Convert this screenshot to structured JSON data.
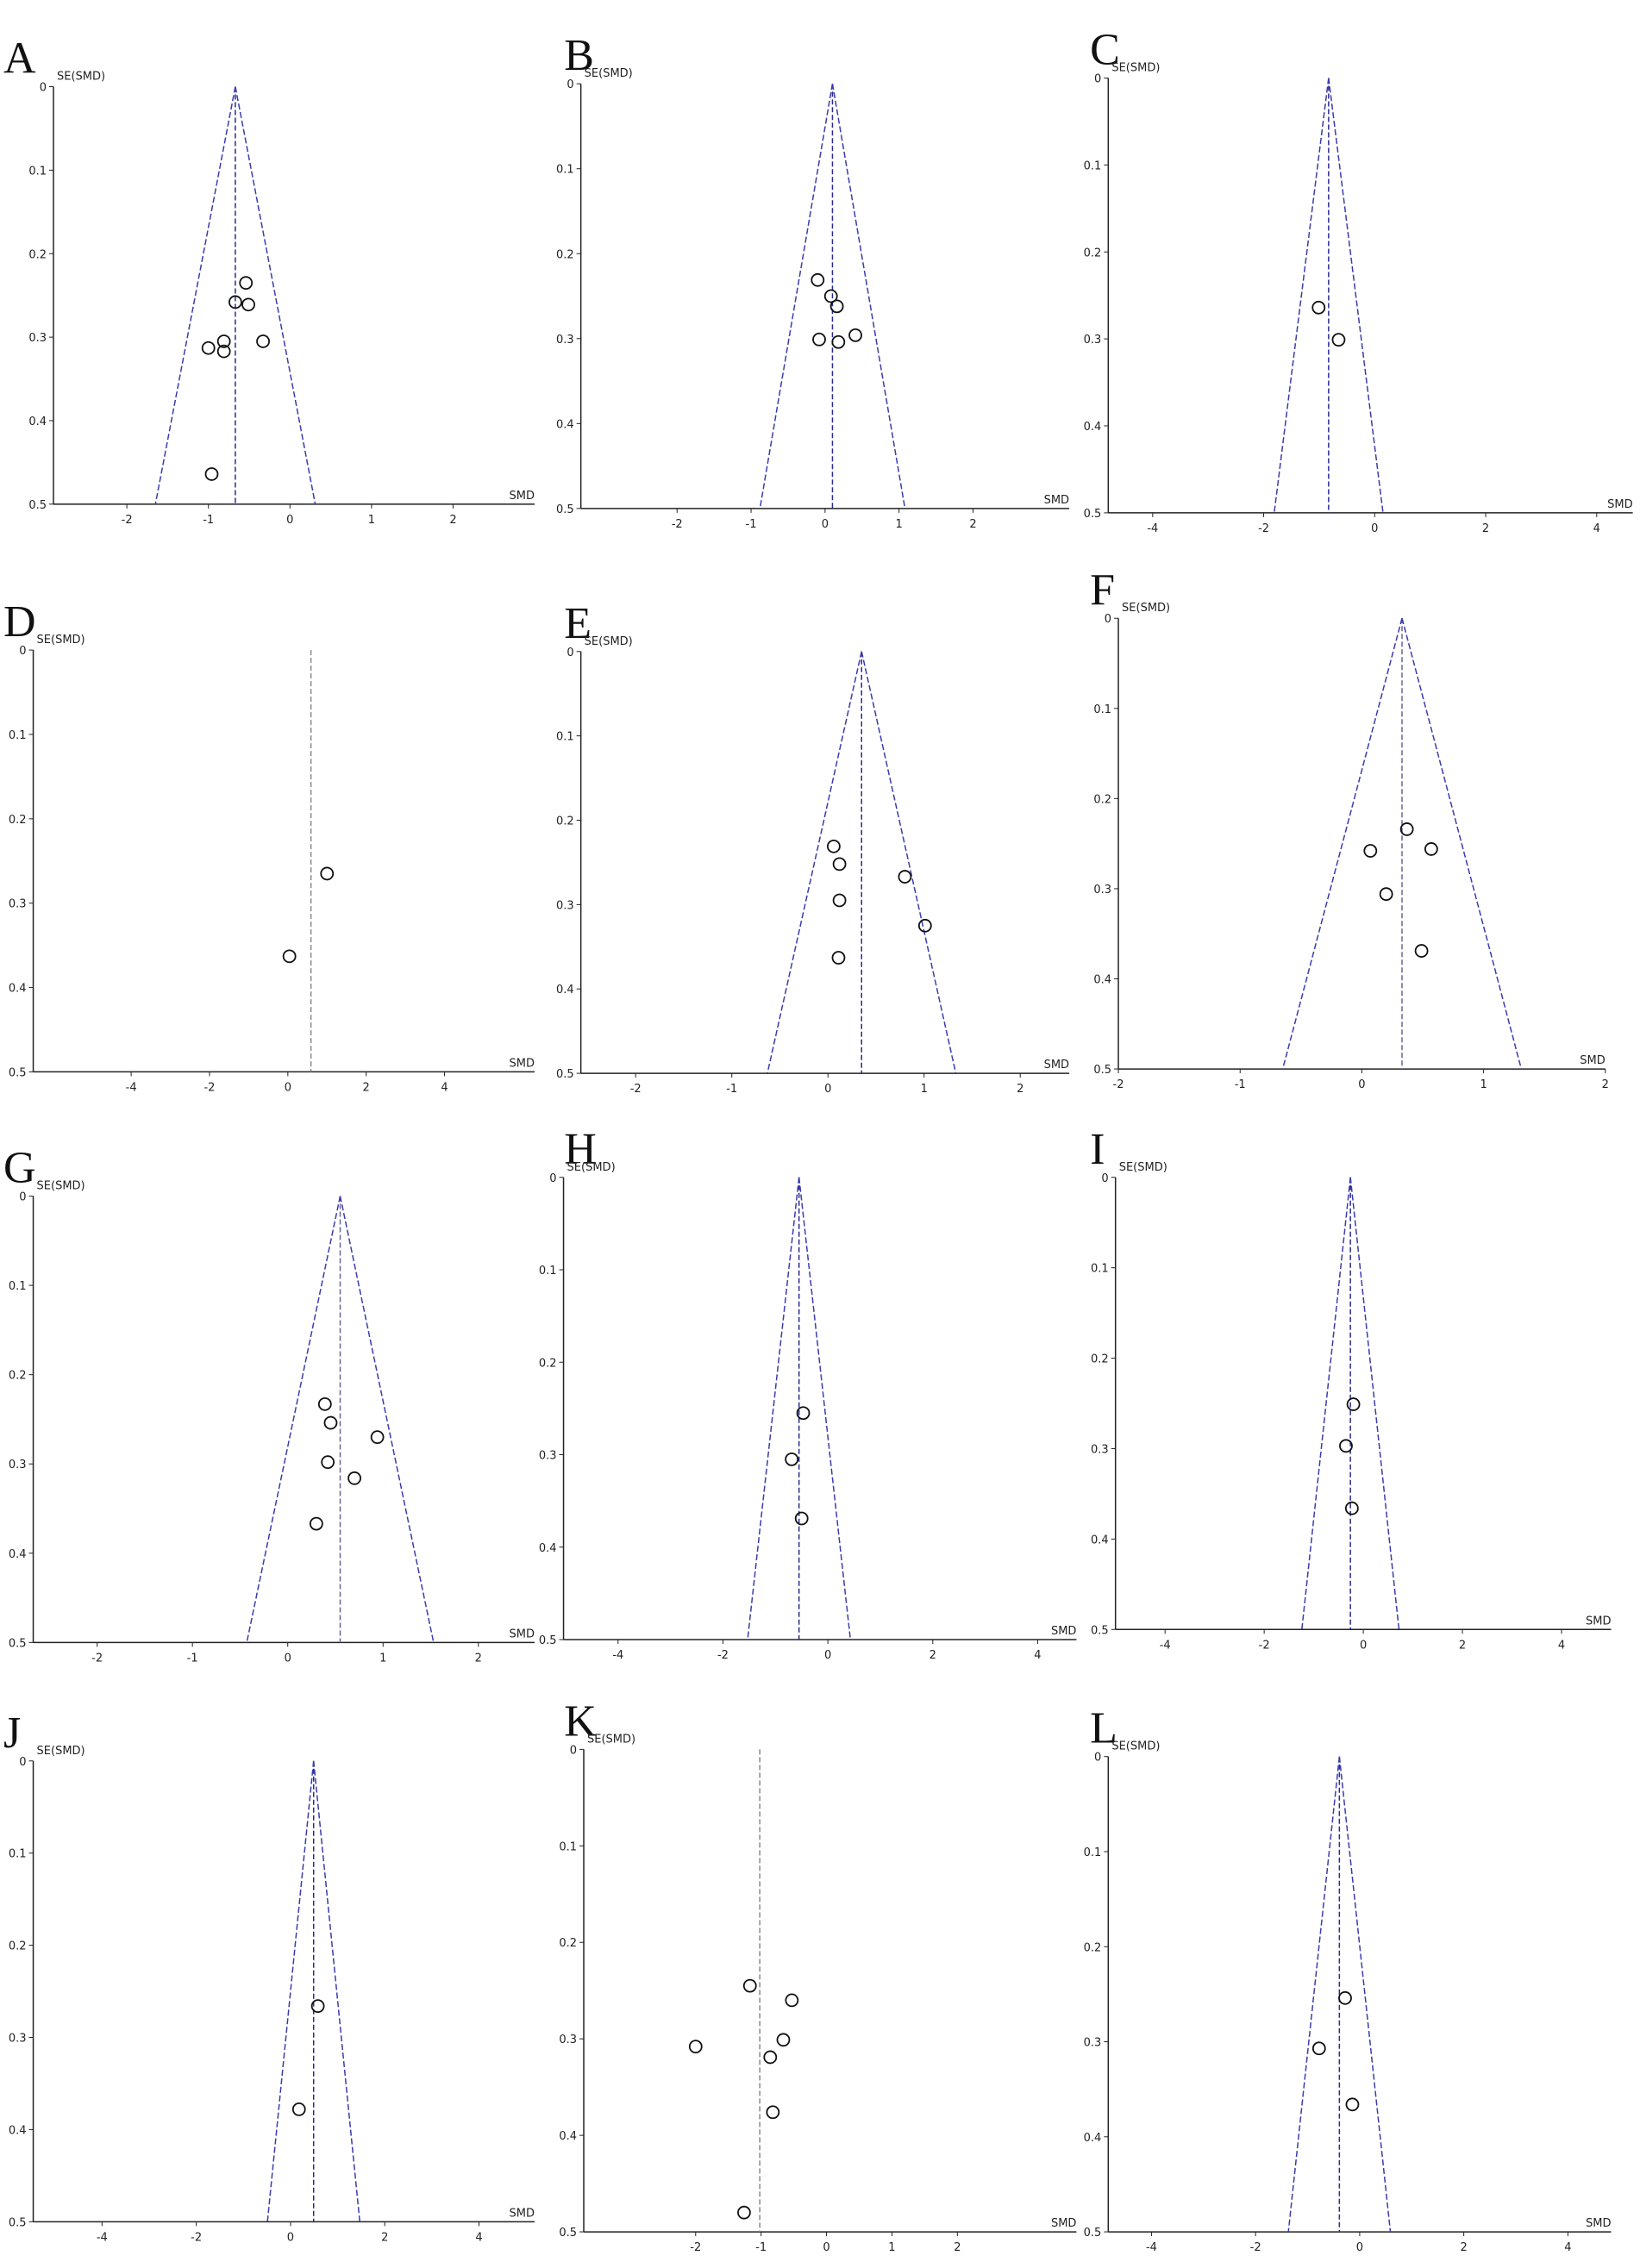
{
  "chart_data": [
    {
      "type": "scatter",
      "title": "A",
      "xlabel": "SMD",
      "ylabel": "SE(SMD)",
      "xlim": [
        -2.9,
        3
      ],
      "ylim": [
        0,
        0.5
      ],
      "y_reversed": true,
      "xticks": [
        -2,
        -1,
        0,
        1,
        2
      ],
      "yticks": [
        0,
        0.1,
        0.2,
        0.3,
        0.4,
        0.5
      ],
      "pooled": -0.67,
      "funnel": true,
      "pooled_color": "#2a2a90",
      "funnel_color": "#3b3bb0",
      "color": "#111111",
      "x": [
        -0.54,
        -0.67,
        -0.51,
        -0.33,
        -0.81,
        -1.0,
        -0.81,
        -0.96
      ],
      "y": [
        0.235,
        0.258,
        0.261,
        0.305,
        0.305,
        0.313,
        0.317,
        0.464
      ]
    },
    {
      "type": "scatter",
      "title": "B",
      "xlabel": "SMD",
      "ylabel": "SE(SMD)",
      "xlim": [
        -3.3,
        3.3
      ],
      "ylim": [
        0,
        0.5
      ],
      "y_reversed": true,
      "xticks": [
        -2,
        -1,
        0,
        1,
        2
      ],
      "yticks": [
        0,
        0.1,
        0.2,
        0.3,
        0.4,
        0.5
      ],
      "pooled": 0.1,
      "funnel": true,
      "pooled_color": "#2a2a90",
      "funnel_color": "#3b3bb0",
      "color": "#111111",
      "x": [
        -0.1,
        0.08,
        0.16,
        0.41,
        -0.08,
        0.18
      ],
      "y": [
        0.231,
        0.25,
        0.262,
        0.296,
        0.301,
        0.304
      ]
    },
    {
      "type": "scatter",
      "title": "C",
      "xlabel": "SMD",
      "ylabel": "SE(SMD)",
      "xlim": [
        -4.8,
        4.65
      ],
      "ylim": [
        0,
        0.5
      ],
      "y_reversed": true,
      "xticks": [
        -4,
        -2,
        0,
        2,
        4
      ],
      "yticks": [
        0,
        0.1,
        0.2,
        0.3,
        0.4,
        0.5
      ],
      "pooled": -0.83,
      "funnel": true,
      "pooled_color": "#2a2a90",
      "funnel_color": "#3b3bb0",
      "color": "#111111",
      "x": [
        -1.01,
        -0.65
      ],
      "y": [
        0.264,
        0.301
      ]
    },
    {
      "type": "scatter",
      "title": "D",
      "xlabel": "SMD",
      "ylabel": "SE(SMD)",
      "xlim": [
        -6.5,
        6.3
      ],
      "ylim": [
        0,
        0.5
      ],
      "y_reversed": true,
      "xticks": [
        -4,
        -2,
        0,
        2,
        4
      ],
      "yticks": [
        0,
        0.1,
        0.2,
        0.3,
        0.4,
        0.5
      ],
      "pooled": 0.59,
      "funnel": false,
      "pooled_color": "#888888",
      "funnel_color": "#3b3bb0",
      "color": "#111111",
      "x": [
        1.0,
        0.04
      ],
      "y": [
        0.265,
        0.363
      ]
    },
    {
      "type": "scatter",
      "title": "E",
      "xlabel": "SMD",
      "ylabel": "SE(SMD)",
      "xlim": [
        -2.57,
        2.51
      ],
      "ylim": [
        0,
        0.5
      ],
      "y_reversed": true,
      "xticks": [
        -2,
        -1,
        0,
        1,
        2
      ],
      "yticks": [
        0,
        0.1,
        0.2,
        0.3,
        0.4,
        0.5
      ],
      "pooled": 0.35,
      "funnel": true,
      "pooled_color": "#2a2a90",
      "funnel_color": "#3b3bb0",
      "color": "#111111",
      "x": [
        0.06,
        0.12,
        0.8,
        1.01,
        0.12,
        0.11
      ],
      "y": [
        0.231,
        0.252,
        0.267,
        0.325,
        0.295,
        0.363
      ]
    },
    {
      "type": "scatter",
      "title": "F",
      "xlabel": "SMD",
      "ylabel": "SE(SMD)",
      "xlim": [
        -2,
        2
      ],
      "ylim": [
        0,
        0.5
      ],
      "y_reversed": true,
      "xticks": [
        -2,
        -1,
        0,
        1,
        2
      ],
      "yticks": [
        0,
        0.1,
        0.2,
        0.3,
        0.4,
        0.5
      ],
      "pooled": 0.33,
      "funnel": true,
      "pooled_color": "#666699",
      "funnel_color": "#3b3bb0",
      "color": "#111111",
      "x": [
        0.37,
        0.07,
        0.57,
        0.2,
        0.49
      ],
      "y": [
        0.234,
        0.258,
        0.256,
        0.306,
        0.369
      ]
    },
    {
      "type": "scatter",
      "title": "G",
      "xlabel": "SMD",
      "ylabel": "SE(SMD)",
      "xlim": [
        -2.67,
        2.59
      ],
      "ylim": [
        0,
        0.5
      ],
      "y_reversed": true,
      "xticks": [
        -2,
        -1,
        0,
        1,
        2
      ],
      "yticks": [
        0,
        0.1,
        0.2,
        0.3,
        0.4,
        0.5
      ],
      "pooled": 0.55,
      "funnel": true,
      "pooled_color": "#666699",
      "funnel_color": "#3b3bb0",
      "color": "#111111",
      "x": [
        0.39,
        0.45,
        0.94,
        0.42,
        0.7,
        0.3
      ],
      "y": [
        0.233,
        0.254,
        0.27,
        0.298,
        0.316,
        0.367
      ]
    },
    {
      "type": "scatter",
      "title": "H",
      "xlabel": "SMD",
      "ylabel": "SE(SMD)",
      "xlim": [
        -5.04,
        4.74
      ],
      "ylim": [
        0,
        0.5
      ],
      "y_reversed": true,
      "xticks": [
        -4,
        -2,
        0,
        2,
        4
      ],
      "yticks": [
        0,
        0.1,
        0.2,
        0.3,
        0.4,
        0.5
      ],
      "pooled": -0.55,
      "funnel": true,
      "pooled_color": "#2a2a90",
      "funnel_color": "#3b3bb0",
      "color": "#111111",
      "x": [
        -0.47,
        -0.69,
        -0.5
      ],
      "y": [
        0.255,
        0.305,
        0.369
      ]
    },
    {
      "type": "scatter",
      "title": "I",
      "xlabel": "SMD",
      "ylabel": "SE(SMD)",
      "xlim": [
        -5,
        5
      ],
      "ylim": [
        0,
        0.5
      ],
      "y_reversed": true,
      "xticks": [
        -4,
        -2,
        0,
        2,
        4
      ],
      "yticks": [
        0,
        0.1,
        0.2,
        0.3,
        0.4,
        0.5
      ],
      "pooled": -0.26,
      "funnel": true,
      "pooled_color": "#2a2a90",
      "funnel_color": "#3b3bb0",
      "color": "#111111",
      "x": [
        -0.2,
        -0.35,
        -0.23
      ],
      "y": [
        0.251,
        0.297,
        0.366
      ]
    },
    {
      "type": "scatter",
      "title": "J",
      "xlabel": "SMD",
      "ylabel": "SE(SMD)",
      "xlim": [
        -5.46,
        5.18
      ],
      "ylim": [
        0,
        0.5
      ],
      "y_reversed": true,
      "xticks": [
        -4,
        -2,
        0,
        2,
        4
      ],
      "yticks": [
        0,
        0.1,
        0.2,
        0.3,
        0.4,
        0.5
      ],
      "pooled": 0.49,
      "funnel": true,
      "pooled_color": "#2a2a90",
      "funnel_color": "#3b3bb0",
      "color": "#111111",
      "x": [
        0.58,
        0.18
      ],
      "y": [
        0.266,
        0.378
      ]
    },
    {
      "type": "scatter",
      "title": "K",
      "xlabel": "SMD",
      "ylabel": "SE(SMD)",
      "xlim": [
        -3.71,
        3.82
      ],
      "ylim": [
        0,
        0.5
      ],
      "y_reversed": true,
      "xticks": [
        -2,
        -1,
        0,
        1,
        2
      ],
      "yticks": [
        0,
        0.1,
        0.2,
        0.3,
        0.4,
        0.5
      ],
      "pooled": -1.02,
      "funnel": false,
      "pooled_color": "#888888",
      "funnel_color": "#3b3bb0",
      "color": "#111111",
      "x": [
        -1.17,
        -0.53,
        -2.0,
        -0.66,
        -0.86,
        -0.82,
        -1.26
      ],
      "y": [
        0.245,
        0.26,
        0.308,
        0.301,
        0.319,
        0.376,
        0.48
      ]
    },
    {
      "type": "scatter",
      "title": "L",
      "xlabel": "SMD",
      "ylabel": "SE(SMD)",
      "xlim": [
        -4.83,
        4.83
      ],
      "ylim": [
        0,
        0.5
      ],
      "y_reversed": true,
      "xticks": [
        -4,
        -2,
        0,
        2,
        4
      ],
      "yticks": [
        0,
        0.1,
        0.2,
        0.3,
        0.4,
        0.5
      ],
      "pooled": -0.39,
      "funnel": true,
      "pooled_color": "#2a2a90",
      "funnel_color": "#3b3bb0",
      "color": "#111111",
      "x": [
        -0.28,
        -0.78,
        -0.14
      ],
      "y": [
        0.254,
        0.307,
        0.366
      ]
    }
  ]
}
